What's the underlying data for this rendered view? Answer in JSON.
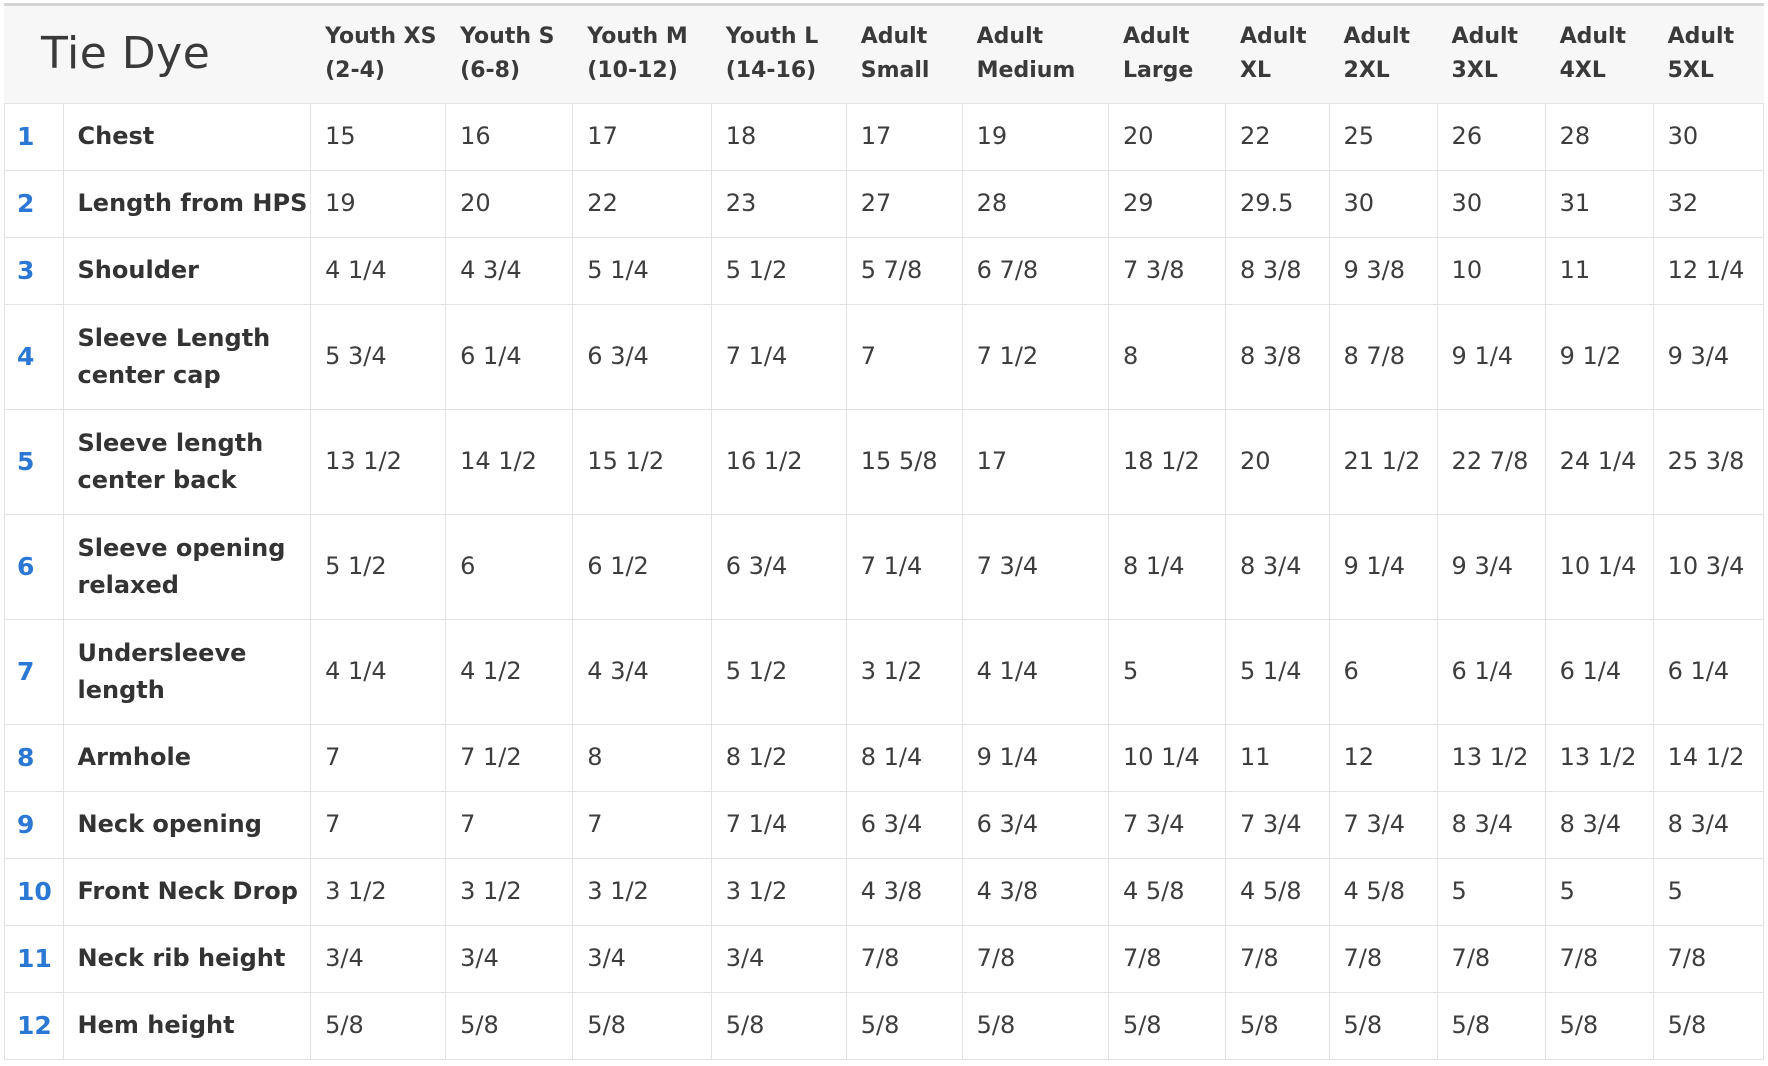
{
  "table": {
    "title": "Tie Dye",
    "size_headers": [
      [
        "Youth XS",
        "(2-4)"
      ],
      [
        "Youth S",
        "(6-8)"
      ],
      [
        "Youth M",
        "(10-12)"
      ],
      [
        "Youth L",
        "(14-16)"
      ],
      [
        "Adult",
        "Small"
      ],
      [
        "Adult",
        "Medium"
      ],
      [
        "Adult",
        "Large"
      ],
      [
        "Adult",
        "XL"
      ],
      [
        "Adult",
        "2XL"
      ],
      [
        "Adult",
        "3XL"
      ],
      [
        "Adult",
        "4XL"
      ],
      [
        "Adult",
        "5XL"
      ]
    ],
    "rows": [
      {
        "num": "1",
        "label": [
          "Chest"
        ],
        "values": [
          "15",
          "16",
          "17",
          "18",
          "17",
          "19",
          "20",
          "22",
          "25",
          "26",
          "28",
          "30"
        ]
      },
      {
        "num": "2",
        "label": [
          "Length from HPS"
        ],
        "values": [
          "19",
          "20",
          "22",
          "23",
          "27",
          "28",
          "29",
          "29.5",
          "30",
          "30",
          "31",
          "32"
        ]
      },
      {
        "num": "3",
        "label": [
          "Shoulder"
        ],
        "values": [
          "4 1/4",
          "4 3/4",
          "5 1/4",
          "5 1/2",
          "5 7/8",
          "6 7/8",
          "7 3/8",
          "8 3/8",
          "9 3/8",
          "10",
          "11",
          "12 1/4"
        ]
      },
      {
        "num": "4",
        "label": [
          "Sleeve Length",
          "center cap"
        ],
        "values": [
          "5 3/4",
          "6 1/4",
          "6 3/4",
          "7 1/4",
          "7",
          "7 1/2",
          "8",
          "8 3/8",
          "8 7/8",
          "9 1/4",
          "9 1/2",
          "9 3/4"
        ]
      },
      {
        "num": "5",
        "label": [
          "Sleeve length",
          "center back"
        ],
        "values": [
          "13 1/2",
          "14 1/2",
          "15 1/2",
          "16 1/2",
          "15 5/8",
          "17",
          "18 1/2",
          "20",
          "21 1/2",
          "22 7/8",
          "24 1/4",
          "25 3/8"
        ]
      },
      {
        "num": "6",
        "label": [
          "Sleeve opening",
          "relaxed"
        ],
        "values": [
          "5 1/2",
          "6",
          "6 1/2",
          "6 3/4",
          "7 1/4",
          "7 3/4",
          "8 1/4",
          "8 3/4",
          "9 1/4",
          "9 3/4",
          "10 1/4",
          "10 3/4"
        ]
      },
      {
        "num": "7",
        "label": [
          "Undersleeve",
          "length"
        ],
        "values": [
          "4 1/4",
          "4 1/2",
          "4 3/4",
          "5 1/2",
          "3 1/2",
          "4 1/4",
          "5",
          "5 1/4",
          "6",
          "6 1/4",
          "6 1/4",
          "6 1/4"
        ]
      },
      {
        "num": "8",
        "label": [
          "Armhole"
        ],
        "values": [
          "7",
          "7 1/2",
          "8",
          "8 1/2",
          "8 1/4",
          "9 1/4",
          "10 1/4",
          "11",
          "12",
          "13 1/2",
          "13 1/2",
          "14 1/2"
        ]
      },
      {
        "num": "9",
        "label": [
          "Neck opening"
        ],
        "values": [
          "7",
          "7",
          "7",
          "7 1/4",
          "6 3/4",
          "6 3/4",
          "7 3/4",
          "7 3/4",
          "7 3/4",
          "8 3/4",
          "8 3/4",
          "8 3/4"
        ]
      },
      {
        "num": "10",
        "label": [
          "Front Neck Drop"
        ],
        "values": [
          "3 1/2",
          "3 1/2",
          "3 1/2",
          "3 1/2",
          "4 3/8",
          "4 3/8",
          "4 5/8",
          "4 5/8",
          "4 5/8",
          "5",
          "5",
          "5"
        ]
      },
      {
        "num": "11",
        "label": [
          "Neck rib height"
        ],
        "values": [
          "3/4",
          "3/4",
          "3/4",
          "3/4",
          "7/8",
          "7/8",
          "7/8",
          "7/8",
          "7/8",
          "7/8",
          "7/8",
          "7/8"
        ]
      },
      {
        "num": "12",
        "label": [
          "Hem height"
        ],
        "values": [
          "5/8",
          "5/8",
          "5/8",
          "5/8",
          "5/8",
          "5/8",
          "5/8",
          "5/8",
          "5/8",
          "5/8",
          "5/8",
          "5/8"
        ]
      }
    ]
  },
  "colors": {
    "row_number": "#2a78d4",
    "header_background": "#f7f7f7",
    "grid_line": "#e3e3e3"
  }
}
